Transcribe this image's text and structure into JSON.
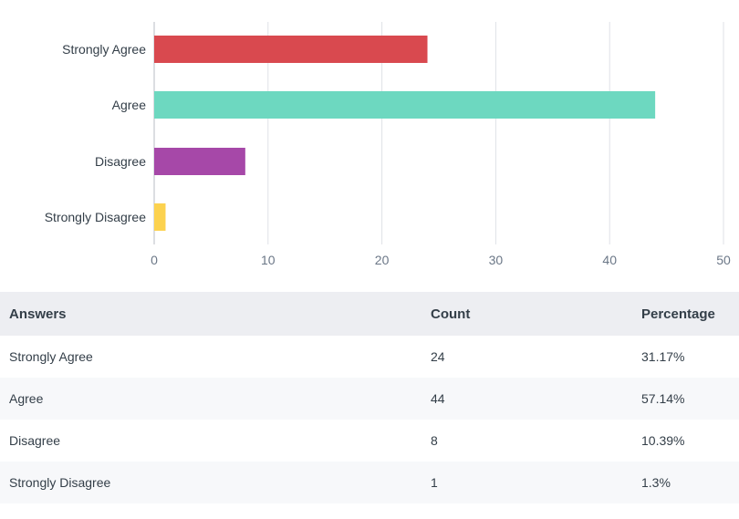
{
  "chart_data": {
    "type": "bar",
    "orientation": "horizontal",
    "categories": [
      "Strongly Agree",
      "Agree",
      "Disagree",
      "Strongly Disagree"
    ],
    "values": [
      24,
      44,
      8,
      1
    ],
    "colors": [
      "#d9494f",
      "#6dd8c0",
      "#a648a8",
      "#fcd24f"
    ],
    "xlim": [
      0,
      50
    ],
    "xticks": [
      "0",
      "10",
      "20",
      "30",
      "40",
      "50"
    ],
    "grid": true,
    "title": "",
    "xlabel": "",
    "ylabel": ""
  },
  "table": {
    "headers": {
      "answers": "Answers",
      "count": "Count",
      "percentage": "Percentage"
    },
    "rows": [
      {
        "answer": "Strongly Agree",
        "count": "24",
        "percentage": "31.17%"
      },
      {
        "answer": "Agree",
        "count": "44",
        "percentage": "57.14%"
      },
      {
        "answer": "Disagree",
        "count": "8",
        "percentage": "10.39%"
      },
      {
        "answer": "Strongly Disagree",
        "count": "1",
        "percentage": "1.3%"
      }
    ]
  }
}
